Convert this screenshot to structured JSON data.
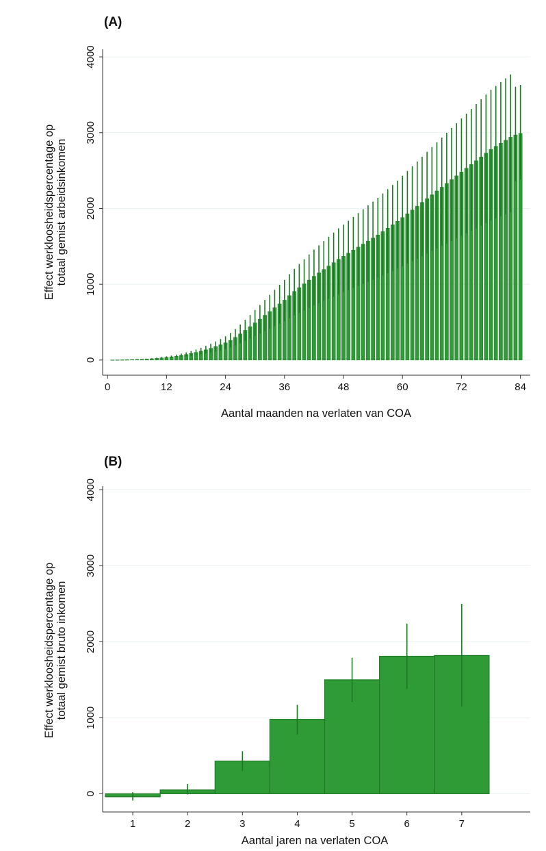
{
  "colors": {
    "bar_fill": "#2e9b36",
    "bar_edge": "#1f7a26",
    "error_bar": "#1a7a22",
    "grid": "#e9f1f2",
    "axis": "#333333"
  },
  "chart_data": [
    {
      "panel_label": "(A)",
      "type": "bar",
      "title": "",
      "xlabel": "Aantal maanden na verlaten van COA",
      "ylabel_line1": "Effect werkloosheidspercentage op",
      "ylabel_line2": "totaal gemist arbeidsinkomen",
      "x_ticks": [
        0,
        12,
        24,
        36,
        48,
        60,
        72,
        84
      ],
      "x_tick_labels": [
        "0",
        "12",
        "24",
        "36",
        "48",
        "60",
        "72",
        "84"
      ],
      "y_ticks": [
        0,
        1000,
        2000,
        3000,
        4000
      ],
      "y_tick_labels": [
        "0",
        "1000",
        "2000",
        "3000",
        "4000"
      ],
      "xlim": [
        -1,
        86
      ],
      "ylim": [
        -200,
        4100
      ],
      "grid": true,
      "x": [
        1,
        2,
        3,
        4,
        5,
        6,
        7,
        8,
        9,
        10,
        11,
        12,
        13,
        14,
        15,
        16,
        17,
        18,
        19,
        20,
        21,
        22,
        23,
        24,
        25,
        26,
        27,
        28,
        29,
        30,
        31,
        32,
        33,
        34,
        35,
        36,
        37,
        38,
        39,
        40,
        41,
        42,
        43,
        44,
        45,
        46,
        47,
        48,
        49,
        50,
        51,
        52,
        53,
        54,
        55,
        56,
        57,
        58,
        59,
        60,
        61,
        62,
        63,
        64,
        65,
        66,
        67,
        68,
        69,
        70,
        71,
        72,
        73,
        74,
        75,
        76,
        77,
        78,
        79,
        80,
        81,
        82,
        83,
        84
      ],
      "values": [
        1,
        2,
        3,
        4,
        6,
        8,
        10,
        13,
        17,
        22,
        28,
        35,
        42,
        51,
        61,
        73,
        86,
        101,
        117,
        135,
        155,
        177,
        201,
        227,
        260,
        300,
        345,
        392,
        440,
        490,
        540,
        590,
        640,
        690,
        740,
        790,
        850,
        905,
        955,
        1005,
        1055,
        1105,
        1150,
        1195,
        1240,
        1285,
        1330,
        1370,
        1410,
        1450,
        1490,
        1530,
        1570,
        1610,
        1650,
        1695,
        1740,
        1785,
        1830,
        1880,
        1930,
        1980,
        2030,
        2080,
        2130,
        2180,
        2230,
        2280,
        2330,
        2380,
        2430,
        2480,
        2530,
        2580,
        2630,
        2680,
        2730,
        2780,
        2820,
        2860,
        2900,
        2940,
        2970,
        2990
      ],
      "error_high": [
        2,
        3,
        4,
        6,
        8,
        11,
        14,
        18,
        24,
        31,
        39,
        49,
        59,
        71,
        85,
        101,
        119,
        139,
        162,
        187,
        214,
        244,
        277,
        313,
        357,
        409,
        468,
        530,
        594,
        660,
        726,
        793,
        860,
        926,
        992,
        1057,
        1133,
        1203,
        1267,
        1330,
        1393,
        1457,
        1513,
        1570,
        1626,
        1682,
        1738,
        1788,
        1838,
        1888,
        1939,
        1989,
        2040,
        2090,
        2140,
        2197,
        2254,
        2310,
        2368,
        2431,
        2494,
        2557,
        2620,
        2683,
        2747,
        2810,
        2872,
        2936,
        2999,
        3062,
        3125,
        3188,
        3251,
        3314,
        3377,
        3440,
        3503,
        3566,
        3616,
        3667,
        3717,
        3768,
        3605,
        3630
      ],
      "error_low": [
        0,
        0,
        1,
        2,
        3,
        5,
        6,
        8,
        11,
        14,
        18,
        22,
        27,
        33,
        39,
        47,
        55,
        65,
        75,
        87,
        99,
        113,
        128,
        144,
        166,
        191,
        220,
        251,
        283,
        316,
        349,
        382,
        414,
        447,
        480,
        513,
        552,
        588,
        621,
        653,
        686,
        719,
        749,
        779,
        809,
        839,
        869,
        896,
        923,
        950,
        977,
        1005,
        1032,
        1059,
        1087,
        1116,
        1146,
        1176,
        1206,
        1239,
        1272,
        1305,
        1338,
        1371,
        1405,
        1438,
        1471,
        1505,
        1538,
        1572,
        1605,
        1639,
        1672,
        1706,
        1739,
        1773,
        1807,
        1840,
        1868,
        1895,
        1922,
        1950,
        2360,
        2380
      ]
    },
    {
      "panel_label": "(B)",
      "type": "bar",
      "title": "",
      "xlabel": "Aantal jaren na verlaten COA",
      "ylabel_line1": "Effect werkloosheidspercentage op",
      "ylabel_line2": "totaal gemist bruto inkomen",
      "categories": [
        "1",
        "2",
        "3",
        "4",
        "5",
        "6",
        "7"
      ],
      "x": [
        1,
        2,
        3,
        4,
        5,
        6,
        7
      ],
      "values": [
        -40,
        50,
        430,
        980,
        1500,
        1810,
        1820
      ],
      "error_low": [
        -90,
        -10,
        300,
        780,
        1210,
        1380,
        1150
      ],
      "error_high": [
        20,
        130,
        560,
        1170,
        1790,
        2240,
        2500
      ],
      "y_ticks": [
        0,
        1000,
        2000,
        3000,
        4000
      ],
      "y_tick_labels": [
        "0",
        "1000",
        "2000",
        "3000",
        "4000"
      ],
      "xlim": [
        0.45,
        8.25
      ],
      "ylim": [
        -240,
        4050
      ],
      "grid": true
    }
  ]
}
